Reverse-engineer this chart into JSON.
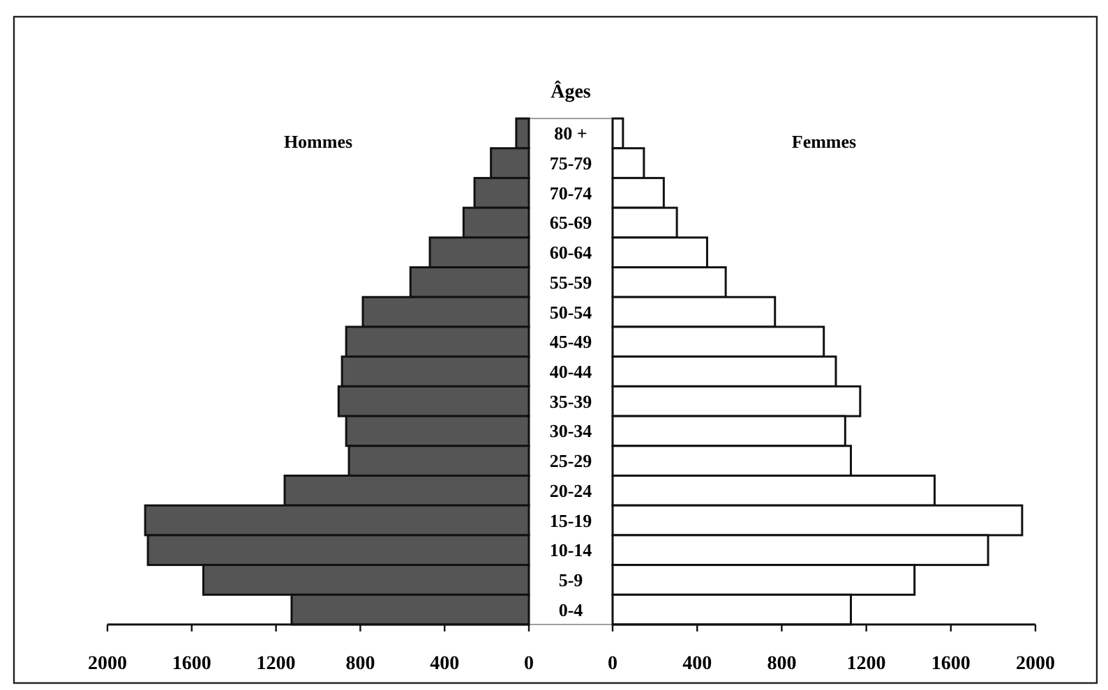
{
  "chart_data": [
    {
      "type": "bar",
      "orientation": "horizontal",
      "title": "Hommes",
      "ylabel": "Âges",
      "categories": [
        "80 +",
        "75-79",
        "70-74",
        "65-69",
        "60-64",
        "55-59",
        "50-54",
        "45-49",
        "40-44",
        "35-39",
        "30-34",
        "25-29",
        "20-24",
        "15-19",
        "10-14",
        "5-9",
        "0-4"
      ],
      "values": [
        60,
        180,
        258,
        310,
        470,
        562,
        788,
        867,
        887,
        903,
        867,
        854,
        1159,
        1821,
        1808,
        1545,
        1126
      ],
      "color": "#555555",
      "xlim": [
        2000,
        0
      ],
      "xticks": [
        2000,
        1600,
        1200,
        800,
        400,
        0
      ]
    },
    {
      "type": "bar",
      "orientation": "horizontal",
      "title": "Femmes",
      "categories": [
        null,
        null,
        null,
        null,
        null,
        null,
        null,
        null,
        null,
        null,
        null,
        null,
        null,
        null,
        null,
        null,
        null
      ],
      "values": [
        49,
        148,
        242,
        304,
        447,
        535,
        768,
        999,
        1056,
        1171,
        1100,
        1127,
        1523,
        1937,
        1776,
        1428,
        1127
      ],
      "color": "#ffffff",
      "xlim": [
        0,
        2000
      ],
      "xticks": [
        0,
        400,
        800,
        1200,
        1600,
        2000
      ],
      "tick_labels": "x"
    }
  ]
}
